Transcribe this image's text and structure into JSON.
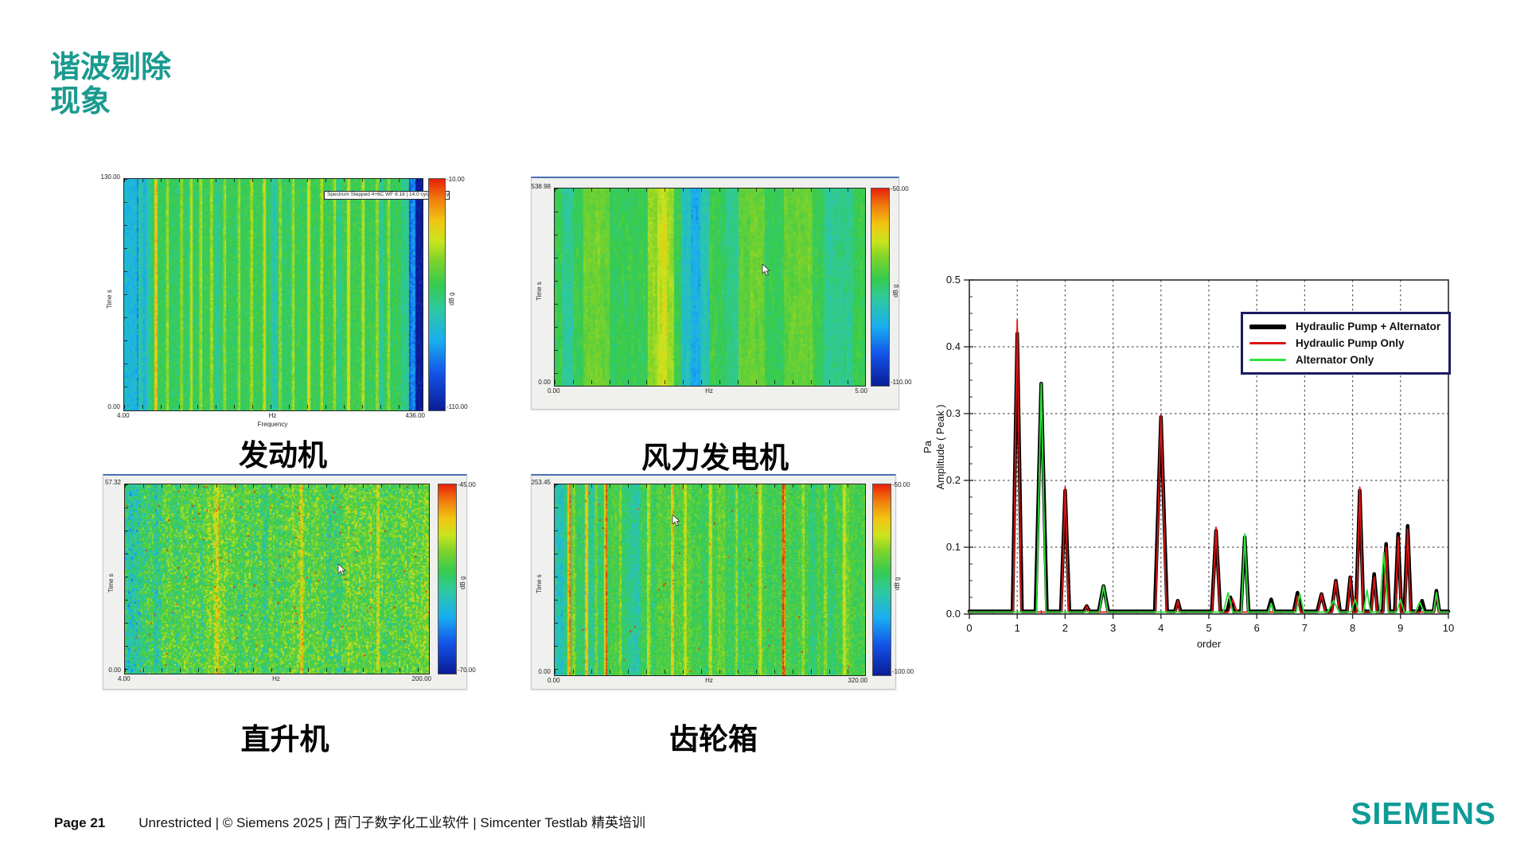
{
  "slide": {
    "title_line1": "谐波剔除",
    "title_line2": "现象"
  },
  "panels": [
    {
      "id": "engine",
      "caption": "发动机",
      "y_max": "130.00",
      "y_min": "0.00",
      "y_axis": "Time",
      "y_unit": "s",
      "x_left": "4.00",
      "x_center": "Hz",
      "x_right": "436.00",
      "x_axis2": "Frequency",
      "cb_top": "-10.00",
      "cb_bottom": "-110.00",
      "cb_unit": "dB",
      "cb_unit2": "g",
      "overlay_label": "Spectrum Stepped 4+6C WF 8:18 | 14.0 cycle 828 cycle",
      "has_cursor": false
    },
    {
      "id": "wind",
      "caption": "风力发电机",
      "y_max": "538.98",
      "y_min": "0.00",
      "y_axis": "Time",
      "y_unit": "s",
      "x_left": "0.00",
      "x_center": "Hz",
      "x_right": "5.00",
      "x_axis2": "",
      "cb_top": "-50.00",
      "cb_bottom": "-110.00",
      "cb_unit": "dB",
      "cb_unit2": "g",
      "overlay_label": "",
      "has_cursor": true
    },
    {
      "id": "heli",
      "caption": "直升机",
      "y_max": "57.32",
      "y_min": "0.00",
      "y_axis": "Time",
      "y_unit": "s",
      "x_left": "4.00",
      "x_center": "Hz",
      "x_right": "200.00",
      "x_axis2": "",
      "cb_top": "-45.00",
      "cb_bottom": "-70.00",
      "cb_unit": "dB",
      "cb_unit2": "g",
      "overlay_label": "",
      "has_cursor": true
    },
    {
      "id": "gear",
      "caption": "齿轮箱",
      "y_max": "253.45",
      "y_min": "0.00",
      "y_axis": "Time",
      "y_unit": "s",
      "x_left": "0.00",
      "x_center": "Hz",
      "x_right": "320.00",
      "x_axis2": "",
      "cb_top": "-50.00",
      "cb_bottom": "-100.00",
      "cb_unit": "dB",
      "cb_unit2": "g",
      "overlay_label": "",
      "has_cursor": true
    }
  ],
  "chart_data": {
    "type": "line",
    "title": "",
    "xlabel": "order",
    "ylabel": "Pa Amplitude ( Peak )",
    "ylabel_lines": [
      "Pa",
      "Amplitude ( Peak )"
    ],
    "xlim": [
      0,
      10
    ],
    "ylim": [
      0,
      0.5
    ],
    "xticks": [
      0,
      1,
      2,
      3,
      4,
      5,
      6,
      7,
      8,
      9,
      10
    ],
    "yticks": [
      0.0,
      0.1,
      0.2,
      0.3,
      0.4,
      0.5
    ],
    "grid": "dashed",
    "legend_position": "top-right",
    "series": [
      {
        "name": "Hydraulic Pump + Alternator",
        "color": "#000000",
        "width": 4.5,
        "baseline": 0.004,
        "peaks": [
          [
            1.0,
            0.42,
            0.1
          ],
          [
            1.5,
            0.345,
            0.12
          ],
          [
            2.0,
            0.185,
            0.09
          ],
          [
            2.45,
            0.012,
            0.06
          ],
          [
            2.8,
            0.042,
            0.1
          ],
          [
            4.0,
            0.295,
            0.13
          ],
          [
            4.35,
            0.02,
            0.06
          ],
          [
            5.15,
            0.125,
            0.09
          ],
          [
            5.45,
            0.025,
            0.07
          ],
          [
            5.75,
            0.115,
            0.08
          ],
          [
            6.3,
            0.022,
            0.07
          ],
          [
            6.85,
            0.032,
            0.08
          ],
          [
            7.35,
            0.03,
            0.09
          ],
          [
            7.65,
            0.05,
            0.09
          ],
          [
            7.95,
            0.055,
            0.07
          ],
          [
            8.15,
            0.185,
            0.08
          ],
          [
            8.45,
            0.06,
            0.07
          ],
          [
            8.7,
            0.105,
            0.07
          ],
          [
            8.95,
            0.12,
            0.07
          ],
          [
            9.15,
            0.132,
            0.07
          ],
          [
            9.45,
            0.02,
            0.06
          ],
          [
            9.75,
            0.035,
            0.06
          ]
        ]
      },
      {
        "name": "Hydraulic Pump Only",
        "color": "#dd1414",
        "width": 1.8,
        "baseline": 0.003,
        "peaks": [
          [
            1.0,
            0.44,
            0.085
          ],
          [
            2.0,
            0.19,
            0.075
          ],
          [
            2.45,
            0.012,
            0.05
          ],
          [
            4.0,
            0.298,
            0.115
          ],
          [
            4.35,
            0.02,
            0.05
          ],
          [
            5.15,
            0.13,
            0.08
          ],
          [
            5.5,
            0.022,
            0.09
          ],
          [
            6.85,
            0.027,
            0.07
          ],
          [
            7.35,
            0.03,
            0.08
          ],
          [
            7.65,
            0.05,
            0.08
          ],
          [
            7.95,
            0.055,
            0.06
          ],
          [
            8.15,
            0.19,
            0.07
          ],
          [
            8.45,
            0.055,
            0.06
          ],
          [
            8.7,
            0.1,
            0.06
          ],
          [
            8.95,
            0.115,
            0.06
          ],
          [
            9.15,
            0.127,
            0.06
          ],
          [
            9.75,
            0.03,
            0.05
          ]
        ]
      },
      {
        "name": "Alternator Only",
        "color": "#2ee23c",
        "width": 1.8,
        "baseline": 0.003,
        "peaks": [
          [
            1.5,
            0.345,
            0.1
          ],
          [
            2.8,
            0.042,
            0.09
          ],
          [
            5.4,
            0.032,
            0.1
          ],
          [
            5.75,
            0.12,
            0.07
          ],
          [
            6.3,
            0.016,
            0.06
          ],
          [
            6.9,
            0.03,
            0.08
          ],
          [
            7.6,
            0.02,
            0.12
          ],
          [
            8.05,
            0.022,
            0.08
          ],
          [
            8.3,
            0.036,
            0.07
          ],
          [
            8.65,
            0.092,
            0.09
          ],
          [
            9.0,
            0.022,
            0.08
          ],
          [
            9.4,
            0.018,
            0.09
          ],
          [
            9.75,
            0.032,
            0.06
          ]
        ]
      }
    ]
  },
  "footer": {
    "page": "Page 21",
    "text": "Unrestricted | © Siemens 2025 | 西门子数字化工业软件 | Simcenter Testlab 精英培训"
  },
  "logo": {
    "text": "SIEMENS"
  },
  "colors": {
    "title_teal": "#1A9A90",
    "logo_teal": "#0F9A98",
    "panel_top_border": "#4A6FB3",
    "legend_border": "#1B1B60",
    "chart_black": "#000000",
    "chart_red": "#DD1414",
    "chart_green": "#2EE23C"
  }
}
